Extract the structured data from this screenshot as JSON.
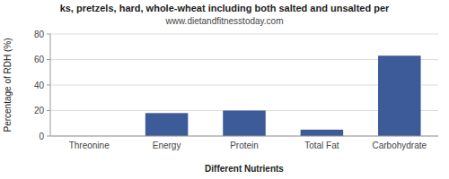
{
  "chart_data": {
    "type": "bar",
    "title": "ks, pretzels, hard, whole-wheat including both salted and unsalted per",
    "subtitle": "www.dietandfitnesstoday.com",
    "categories": [
      "Threonine",
      "Energy",
      "Protein",
      "Total Fat",
      "Carbohydrate"
    ],
    "values": [
      0,
      18,
      20,
      5,
      63
    ],
    "color": "#3d5a99",
    "xlabel": "Different Nutrients",
    "ylabel": "Percentage of RDH (%)",
    "ylim": [
      0,
      80
    ],
    "yticks": [
      0,
      20,
      40,
      60,
      80
    ],
    "grid": true
  }
}
